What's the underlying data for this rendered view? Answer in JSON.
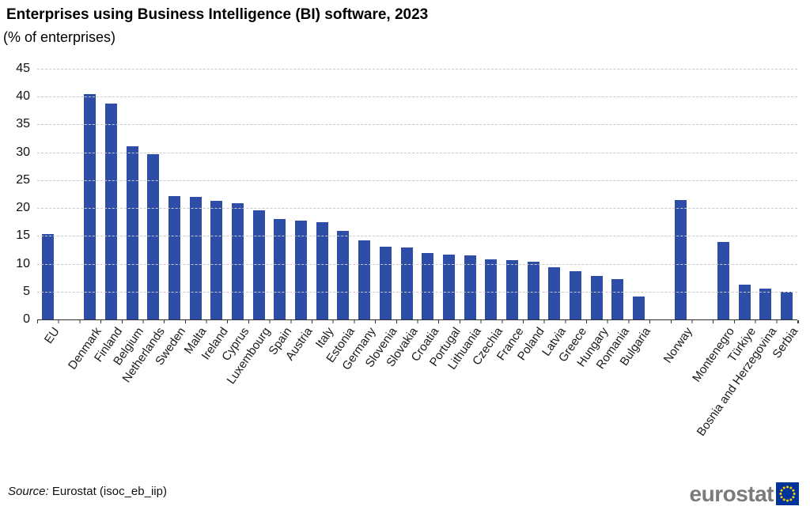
{
  "header": {
    "title": "Enterprises using Business Intelligence (BI) software, 2023",
    "subtitle": "(% of enterprises)"
  },
  "chart_data": {
    "type": "bar",
    "title": "Enterprises using Business Intelligence (BI) software, 2023",
    "subtitle": "(% of enterprises)",
    "ylabel": "% of enterprises",
    "xlabel": "",
    "ylim": [
      0,
      45
    ],
    "yticks": [
      0,
      5,
      10,
      15,
      20,
      25,
      30,
      35,
      40,
      45
    ],
    "grid": true,
    "legend": false,
    "bar_color": "#2D4DA6",
    "categories": [
      "EU",
      "Denmark",
      "Finland",
      "Belgium",
      "Netherlands",
      "Sweden",
      "Malta",
      "Ireland",
      "Cyprus",
      "Luxembourg",
      "Spain",
      "Austria",
      "Italy",
      "Estonia",
      "Germany",
      "Slovenia",
      "Slovakia",
      "Croatia",
      "Portugal",
      "Lithuania",
      "Czechia",
      "France",
      "Poland",
      "Latvia",
      "Greece",
      "Hungary",
      "Romania",
      "Bulgaria",
      "Norway",
      "Montenegro",
      "Türkiye",
      "Bosnia and Herzegovina",
      "Serbia"
    ],
    "values": [
      15.3,
      40.4,
      38.8,
      31.1,
      29.7,
      22.2,
      22.0,
      21.3,
      20.8,
      19.6,
      18.0,
      17.8,
      17.5,
      15.9,
      14.2,
      13.0,
      12.9,
      11.9,
      11.7,
      11.5,
      10.8,
      10.6,
      10.4,
      9.4,
      8.7,
      7.8,
      7.2,
      4.1,
      21.4,
      13.9,
      6.3,
      5.6,
      5.0
    ],
    "gaps_after": [
      "EU",
      "Bulgaria",
      "Norway"
    ]
  },
  "footer": {
    "source_label": "Source:",
    "source_text": " Eurostat (isoc_eb_iip)",
    "logo_text": "eurostat"
  },
  "colors": {
    "bar": "#2D4DA6",
    "eu_flag_blue": "#003399",
    "eu_flag_stars": "#FFCC00",
    "logo_gray": "#7B7B7B"
  }
}
